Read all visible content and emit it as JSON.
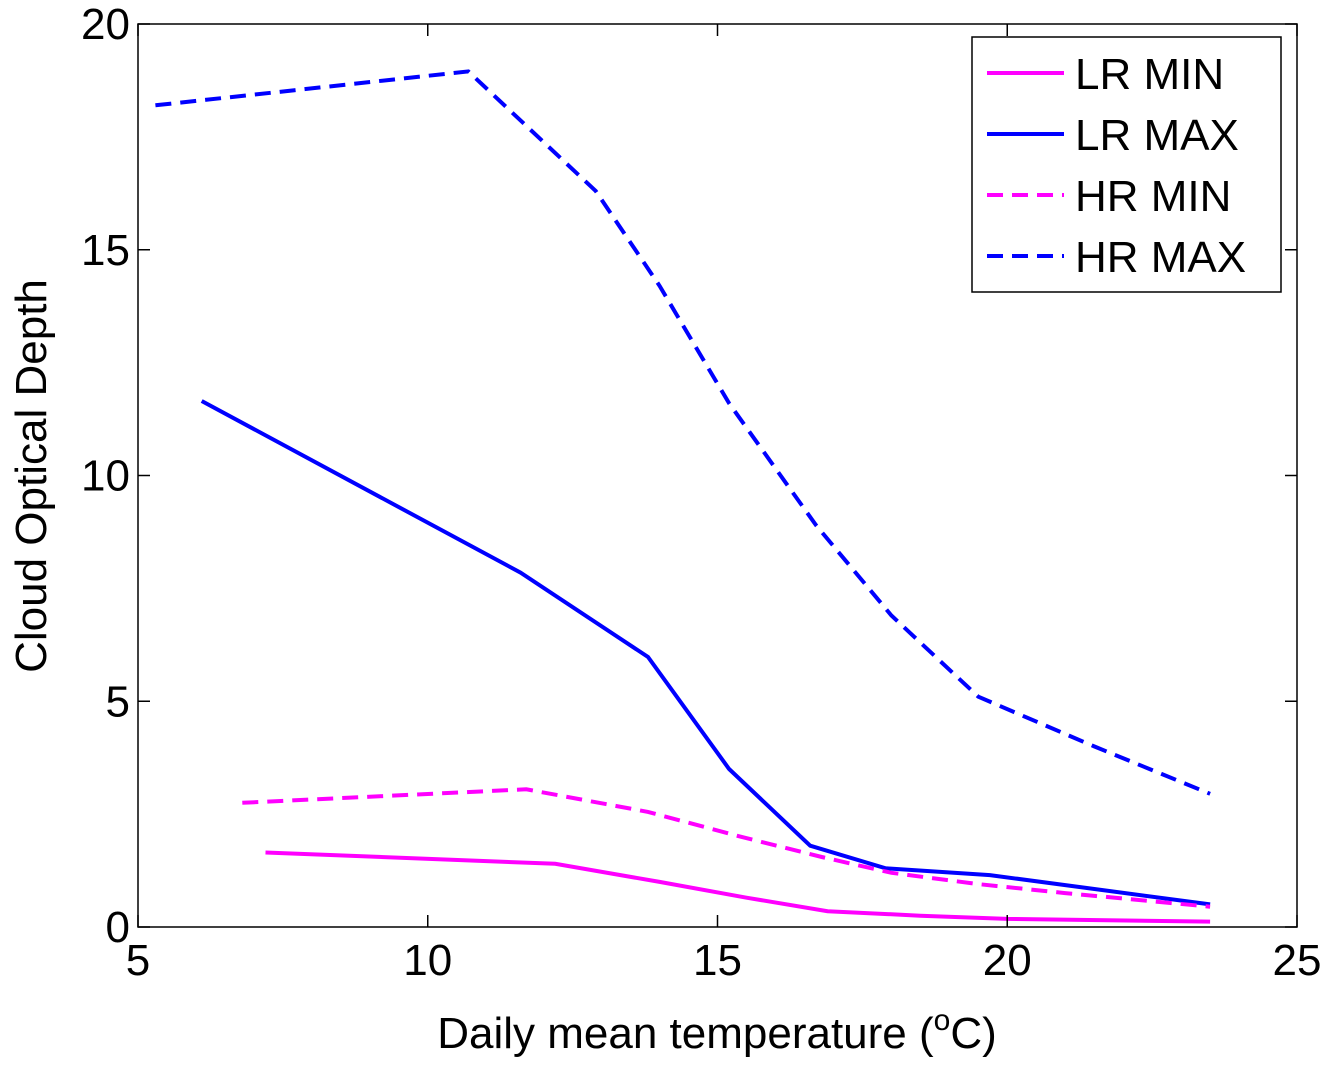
{
  "chart_data": {
    "type": "line",
    "xlabel": "Daily mean temperature (",
    "xlabel_sup": "o",
    "xlabel_end": "C)",
    "ylabel": "Cloud Optical Depth",
    "xlim": [
      5,
      25
    ],
    "ylim": [
      0,
      20
    ],
    "xticks": [
      "5",
      "10",
      "15",
      "20",
      "25"
    ],
    "yticks": [
      "0",
      "5",
      "10",
      "15",
      "20"
    ],
    "grid": false,
    "legend_position": "top-right",
    "series": [
      {
        "name": "LR MIN",
        "color": "#ff00ff",
        "style": "solid",
        "x": [
          7.2,
          12.2,
          14.0,
          15.5,
          16.9,
          18.5,
          20.0,
          23.5
        ],
        "y": [
          1.65,
          1.4,
          1.0,
          0.65,
          0.35,
          0.25,
          0.18,
          0.12
        ]
      },
      {
        "name": "LR MAX",
        "color": "#0000ff",
        "style": "solid",
        "x": [
          6.1,
          11.6,
          13.8,
          15.2,
          16.6,
          17.9,
          19.7,
          23.5
        ],
        "y": [
          11.65,
          7.85,
          5.98,
          3.5,
          1.8,
          1.3,
          1.15,
          0.5
        ]
      },
      {
        "name": "HR MIN",
        "color": "#ff00ff",
        "style": "dashed",
        "x": [
          6.8,
          11.7,
          13.8,
          15.4,
          16.8,
          18.0,
          19.5,
          21.0,
          23.5
        ],
        "y": [
          2.75,
          3.05,
          2.55,
          2.0,
          1.55,
          1.2,
          0.95,
          0.75,
          0.45
        ]
      },
      {
        "name": "HR MAX",
        "color": "#0000ff",
        "style": "dashed",
        "x": [
          5.3,
          10.7,
          12.9,
          14.0,
          15.2,
          16.7,
          18.0,
          19.5,
          21.5,
          23.5
        ],
        "y": [
          18.2,
          18.95,
          16.3,
          14.2,
          11.6,
          8.9,
          6.9,
          5.1,
          4.0,
          2.95
        ]
      }
    ]
  }
}
